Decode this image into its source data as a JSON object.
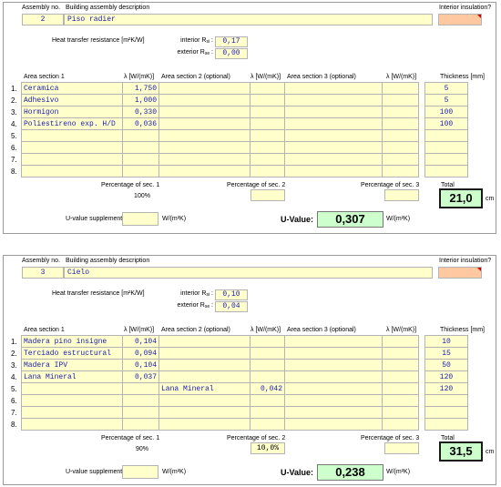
{
  "labels": {
    "assembly_no": "Assembly no.",
    "description": "Building assembly description",
    "interior_insulation": "Interior insulation?",
    "heat_transfer": "Heat transfer resistance [m²K/W]",
    "interior_r": "interior R",
    "interior_r_sub": "si",
    "exterior_r": "exterior R",
    "exterior_r_sub": "se",
    "area1": "Area section 1",
    "area2": "Area section 2 (optional)",
    "area3": "Area section 3 (optional)",
    "lambda": "λ [W/(mK)]",
    "thickness": "Thickness [mm]",
    "pct1": "Percentage of sec. 1",
    "pct2": "Percentage of sec. 2",
    "pct3": "Percentage of sec. 3",
    "total": "Total",
    "cm": "cm",
    "supplement": "U-value supplement",
    "supplement_unit": "W/(m²K)",
    "uvalue": "U-Value:",
    "uvalue_unit": "W/(m²K)",
    "rows": [
      "1.",
      "2.",
      "3.",
      "4.",
      "5.",
      "6.",
      "7.",
      "8."
    ]
  },
  "assemblies": [
    {
      "number": "2",
      "description": "Piso radier",
      "rsi": "0,17",
      "rse": "0,00",
      "layers": [
        {
          "a1": "Ceramica",
          "l1": "1,750",
          "a2": "",
          "l2": "",
          "a3": "",
          "l3": "",
          "t": "5"
        },
        {
          "a1": "Adhesivo",
          "l1": "1,000",
          "a2": "",
          "l2": "",
          "a3": "",
          "l3": "",
          "t": "5"
        },
        {
          "a1": "Hormigon",
          "l1": "0,330",
          "a2": "",
          "l2": "",
          "a3": "",
          "l3": "",
          "t": "100"
        },
        {
          "a1": "Poliestireno exp. H/D",
          "l1": "0,036",
          "a2": "",
          "l2": "",
          "a3": "",
          "l3": "",
          "t": "100"
        },
        {
          "a1": "",
          "l1": "",
          "a2": "",
          "l2": "",
          "a3": "",
          "l3": "",
          "t": ""
        },
        {
          "a1": "",
          "l1": "",
          "a2": "",
          "l2": "",
          "a3": "",
          "l3": "",
          "t": ""
        },
        {
          "a1": "",
          "l1": "",
          "a2": "",
          "l2": "",
          "a3": "",
          "l3": "",
          "t": ""
        },
        {
          "a1": "",
          "l1": "",
          "a2": "",
          "l2": "",
          "a3": "",
          "l3": "",
          "t": ""
        }
      ],
      "pct1": "100%",
      "pct2": "",
      "pct3": "",
      "total": "21,0",
      "supplement": "",
      "uvalue": "0,307"
    },
    {
      "number": "3",
      "description": "Cielo",
      "rsi": "0,10",
      "rse": "0,04",
      "layers": [
        {
          "a1": "Madera pino insigne",
          "l1": "0,104",
          "a2": "",
          "l2": "",
          "a3": "",
          "l3": "",
          "t": "10"
        },
        {
          "a1": "Terciado estructural",
          "l1": "0,094",
          "a2": "",
          "l2": "",
          "a3": "",
          "l3": "",
          "t": "15"
        },
        {
          "a1": "Madera IPV",
          "l1": "0,104",
          "a2": "",
          "l2": "",
          "a3": "",
          "l3": "",
          "t": "50"
        },
        {
          "a1": "Lana Mineral",
          "l1": "0,037",
          "a2": "",
          "l2": "",
          "a3": "",
          "l3": "",
          "t": "120"
        },
        {
          "a1": "",
          "l1": "",
          "a2": "Lana Mineral",
          "l2": "0,042",
          "a3": "",
          "l3": "",
          "t": "120"
        },
        {
          "a1": "",
          "l1": "",
          "a2": "",
          "l2": "",
          "a3": "",
          "l3": "",
          "t": ""
        },
        {
          "a1": "",
          "l1": "",
          "a2": "",
          "l2": "",
          "a3": "",
          "l3": "",
          "t": ""
        },
        {
          "a1": "",
          "l1": "",
          "a2": "",
          "l2": "",
          "a3": "",
          "l3": "",
          "t": ""
        }
      ],
      "pct1": "90%",
      "pct2": "10,0%",
      "pct3": "",
      "total": "31,5",
      "supplement": "",
      "uvalue": "0,238"
    }
  ]
}
